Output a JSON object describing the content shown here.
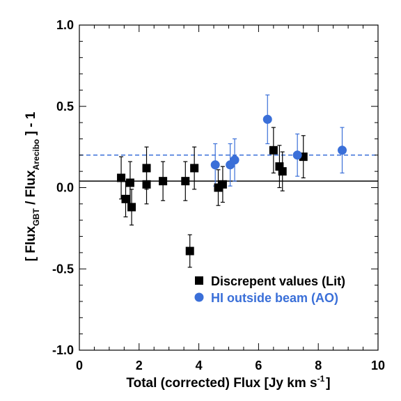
{
  "chart_data": {
    "type": "scatter",
    "xlabel": "Total (corrected) Flux [Jy km s",
    "xlabel_sup": "-1",
    "xlabel_end": "]",
    "ylabel_open": "[ Flux",
    "ylabel_sub1": "GBT",
    "ylabel_mid": " / Flux",
    "ylabel_sub2": "Arecibo",
    "ylabel_close": " ] - 1",
    "xlim": [
      0,
      10
    ],
    "ylim": [
      -1.0,
      1.0
    ],
    "x_ticks": [
      0,
      2,
      4,
      6,
      8,
      10
    ],
    "x_tick_labels": [
      "0",
      "2",
      "4",
      "6",
      "8",
      "10"
    ],
    "y_ticks": [
      -1.0,
      -0.5,
      0.0,
      0.5,
      1.0
    ],
    "y_tick_labels": [
      "-1.0",
      "-0.5",
      "0.0",
      "0.5",
      "1.0"
    ],
    "grid": false,
    "legend_position": "bottom-right",
    "reference_lines": [
      {
        "y": 0.04,
        "style": "solid",
        "color": "#000000"
      },
      {
        "y": 0.2,
        "style": "dashed",
        "color": "#3a6fd8"
      }
    ],
    "series": [
      {
        "name": "Discrepent values (Lit)",
        "marker": "square",
        "color": "#000000",
        "points": [
          {
            "x": 1.4,
            "y": 0.06,
            "err": 0.13
          },
          {
            "x": 1.55,
            "y": -0.07,
            "err": 0.11
          },
          {
            "x": 1.7,
            "y": 0.03,
            "err": 0.13
          },
          {
            "x": 1.75,
            "y": -0.12,
            "err": 0.11
          },
          {
            "x": 2.25,
            "y": 0.12,
            "err": 0.13
          },
          {
            "x": 2.25,
            "y": 0.02,
            "err": 0.12
          },
          {
            "x": 2.8,
            "y": 0.04,
            "err": 0.12
          },
          {
            "x": 3.55,
            "y": 0.04,
            "err": 0.12
          },
          {
            "x": 3.7,
            "y": -0.39,
            "err": 0.1
          },
          {
            "x": 3.85,
            "y": 0.12,
            "err": 0.13
          },
          {
            "x": 4.65,
            "y": 0.0,
            "err": 0.11
          },
          {
            "x": 4.8,
            "y": 0.02,
            "err": 0.11
          },
          {
            "x": 6.5,
            "y": 0.23,
            "err": 0.14
          },
          {
            "x": 6.7,
            "y": 0.13,
            "err": 0.13
          },
          {
            "x": 6.8,
            "y": 0.1,
            "err": 0.12
          },
          {
            "x": 7.5,
            "y": 0.19,
            "err": 0.13
          }
        ]
      },
      {
        "name": "HI outside beam (AO)",
        "marker": "circle",
        "color": "#3a6fd8",
        "points": [
          {
            "x": 4.55,
            "y": 0.14,
            "err": 0.13
          },
          {
            "x": 5.05,
            "y": 0.14,
            "err": 0.13
          },
          {
            "x": 5.2,
            "y": 0.17,
            "err": 0.13
          },
          {
            "x": 6.3,
            "y": 0.42,
            "err": 0.15
          },
          {
            "x": 7.3,
            "y": 0.2,
            "err": 0.13
          },
          {
            "x": 8.8,
            "y": 0.23,
            "err": 0.14
          }
        ]
      }
    ]
  }
}
